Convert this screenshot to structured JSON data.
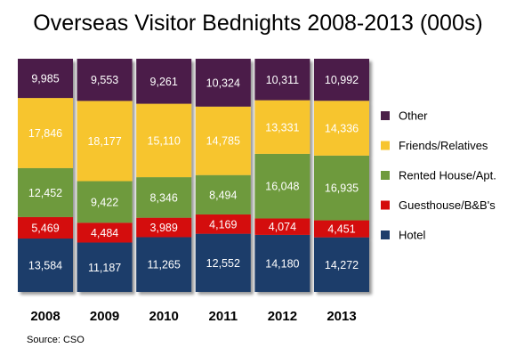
{
  "chart_data": {
    "type": "bar",
    "stacked": true,
    "title": "Overseas Visitor Bednights 2008-2013 (000s)",
    "source": "Source: CSO",
    "categories": [
      "2008",
      "2009",
      "2010",
      "2011",
      "2012",
      "2013"
    ],
    "legend_position": "right",
    "grid": false,
    "series": [
      {
        "name": "Hotel",
        "color": "#1f3d6b",
        "values": [
          13584,
          11187,
          11265,
          12552,
          14180,
          14272
        ],
        "labels": [
          "13,584",
          "11,187",
          "11,265",
          "12,552",
          "14,180",
          "14,272"
        ]
      },
      {
        "name": "Guesthouse/B&B's",
        "color": "#d40b0b",
        "values": [
          5469,
          4484,
          3989,
          4169,
          4074,
          4451
        ],
        "labels": [
          "5,469",
          "4,484",
          "3,989",
          "4,169",
          "4,074",
          "4,451"
        ]
      },
      {
        "name": "Rented House/Apt.",
        "color": "#6e9a3c",
        "values": [
          12452,
          9422,
          8346,
          8494,
          16048,
          16935
        ],
        "labels": [
          "12,452",
          "9,422",
          "8,346",
          "8,494",
          "16,048",
          "16,935"
        ]
      },
      {
        "name": "Friends/Relatives",
        "color": "#f7c52f",
        "values": [
          17846,
          18177,
          15110,
          14785,
          13331,
          14336
        ],
        "labels": [
          "17,846",
          "18,177",
          "15,110",
          "14,785",
          "13,331",
          "14,336"
        ]
      },
      {
        "name": "Other",
        "color": "#4b1f48",
        "values": [
          9985,
          9553,
          9261,
          10324,
          10311,
          10992
        ],
        "labels": [
          "9,985",
          "9,553",
          "9,261",
          "10,324",
          "10,311",
          "10,992"
        ]
      }
    ]
  }
}
